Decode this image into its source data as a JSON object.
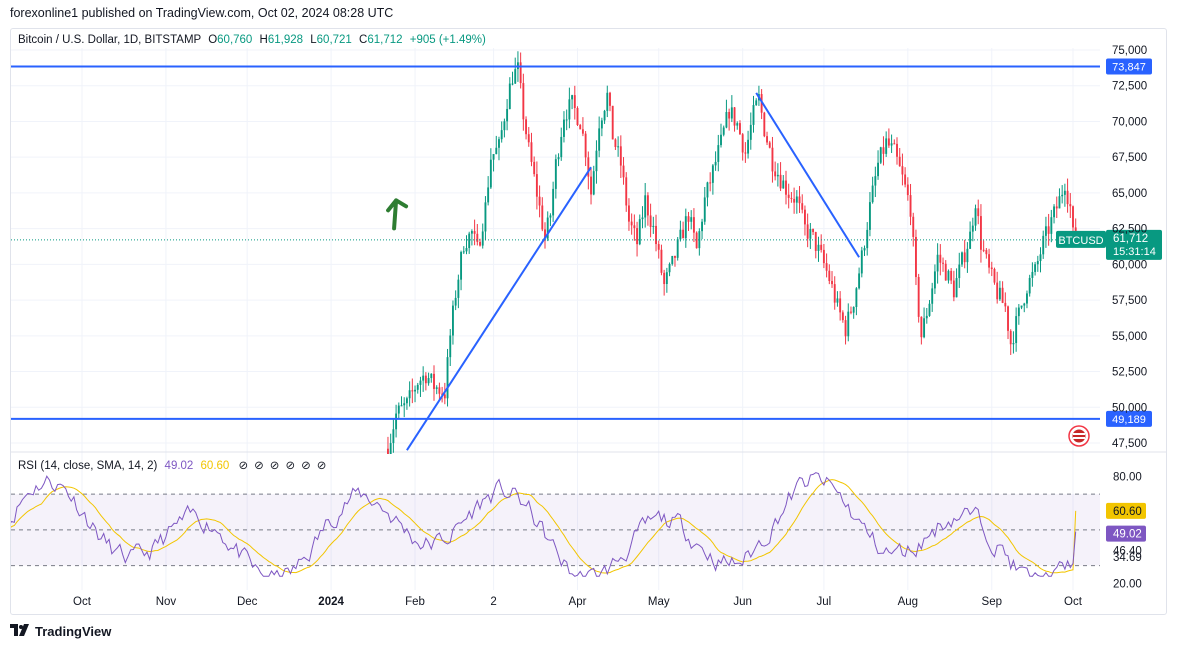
{
  "publisher_line": "forexonline1 published on TradingView.com, Oct 02, 2024 08:28 UTC",
  "legend": {
    "symbol": "Bitcoin / U.S. Dollar, 1D, BITSTAMP",
    "open_label": "O",
    "open": "60,760",
    "high_label": "H",
    "high": "61,928",
    "low_label": "L",
    "low": "60,721",
    "close_label": "C",
    "close": "61,712",
    "change": "+905 (+1.49%)"
  },
  "rsi_legend": {
    "label": "RSI (14, close, SMA, 14, 2)",
    "rsi": "49.02",
    "sma": "60.60",
    "icons": [
      "eye-off-icon",
      "eye-off-icon",
      "eye-off-icon",
      "eye-off-icon",
      "eye-off-icon",
      "eye-off-icon"
    ]
  },
  "footer": {
    "brand": "TradingView",
    "logo": "tradingview-logo"
  },
  "colors": {
    "up": "#089981",
    "down": "#f23645",
    "level_line": "#2962ff",
    "rsi": "#7e57c2",
    "rsi_sma": "#f2c500",
    "arrow": "#2e7d32"
  },
  "chart_data": {
    "type": "candlestick",
    "price_axis": {
      "ticks": [
        "75,000",
        "72,500",
        "70,000",
        "67,500",
        "65,000",
        "62,500",
        "60,000",
        "57,500",
        "55,000",
        "52,500",
        "50,000",
        "47,500"
      ],
      "tick_values": [
        75000,
        72500,
        70000,
        67500,
        65000,
        62500,
        60000,
        57500,
        55000,
        52500,
        50000,
        47500
      ],
      "range": [
        47000,
        76000
      ]
    },
    "time_axis": {
      "ticks": [
        "Oct",
        "Nov",
        "Dec",
        "2024",
        "Feb",
        "2",
        "Apr",
        "May",
        "Jun",
        "Jul",
        "Aug",
        "Sep",
        "Oct"
      ]
    },
    "levels": [
      {
        "value": 73847,
        "label": "73,847"
      },
      {
        "value": 49189,
        "label": "49,189"
      }
    ],
    "last_price": {
      "symbol": "BTCUSD",
      "value": 61712,
      "label": "61,712",
      "countdown": "15:31:14"
    },
    "trendlines": [
      {
        "from": {
          "date": "2024-01-29",
          "price": 47000
        },
        "to": {
          "date": "2024-04-06",
          "price": 66800
        }
      },
      {
        "from": {
          "date": "2024-06-06",
          "price": 72000
        },
        "to": {
          "date": "2024-07-14",
          "price": 60500
        }
      }
    ],
    "arrow": {
      "direction": "up",
      "date": "2024-01-25",
      "price": 63500
    },
    "price_path": [
      [
        "2024-01-22",
        47100
      ],
      [
        "2024-01-25",
        49500
      ],
      [
        "2024-01-29",
        50200
      ],
      [
        "2024-02-02",
        51800
      ],
      [
        "2024-02-05",
        52300
      ],
      [
        "2024-02-08",
        51500
      ],
      [
        "2024-02-12",
        51000
      ],
      [
        "2024-02-14",
        55000
      ],
      [
        "2024-02-16",
        58000
      ],
      [
        "2024-02-19",
        61500
      ],
      [
        "2024-02-22",
        62200
      ],
      [
        "2024-02-24",
        61000
      ],
      [
        "2024-02-27",
        64000
      ],
      [
        "2024-02-29",
        67500
      ],
      [
        "2024-03-03",
        68200
      ],
      [
        "2024-03-06",
        71500
      ],
      [
        "2024-03-08",
        73200
      ],
      [
        "2024-03-10",
        73600
      ],
      [
        "2024-03-12",
        70500
      ],
      [
        "2024-03-14",
        68000
      ],
      [
        "2024-03-17",
        65000
      ],
      [
        "2024-03-20",
        61800
      ],
      [
        "2024-03-22",
        63500
      ],
      [
        "2024-03-24",
        67000
      ],
      [
        "2024-03-27",
        70500
      ],
      [
        "2024-03-30",
        71200
      ],
      [
        "2024-04-02",
        70000
      ],
      [
        "2024-04-04",
        68000
      ],
      [
        "2024-04-06",
        65000
      ],
      [
        "2024-04-09",
        70000
      ],
      [
        "2024-04-12",
        71800
      ],
      [
        "2024-04-14",
        69000
      ],
      [
        "2024-04-17",
        67000
      ],
      [
        "2024-04-20",
        63000
      ],
      [
        "2024-04-23",
        61500
      ],
      [
        "2024-04-26",
        64500
      ],
      [
        "2024-04-29",
        62500
      ],
      [
        "2024-05-01",
        60500
      ],
      [
        "2024-05-03",
        58500
      ],
      [
        "2024-05-06",
        60000
      ],
      [
        "2024-05-09",
        61800
      ],
      [
        "2024-05-12",
        63500
      ],
      [
        "2024-05-15",
        61000
      ],
      [
        "2024-05-18",
        64500
      ],
      [
        "2024-05-21",
        66500
      ],
      [
        "2024-05-24",
        68500
      ],
      [
        "2024-05-27",
        70800
      ],
      [
        "2024-05-30",
        69800
      ],
      [
        "2024-06-02",
        67800
      ],
      [
        "2024-06-05",
        70500
      ],
      [
        "2024-06-07",
        71600
      ],
      [
        "2024-06-09",
        69500
      ],
      [
        "2024-06-12",
        67200
      ],
      [
        "2024-06-15",
        66000
      ],
      [
        "2024-06-18",
        65000
      ],
      [
        "2024-06-21",
        64500
      ],
      [
        "2024-06-24",
        62500
      ],
      [
        "2024-06-27",
        61800
      ],
      [
        "2024-06-30",
        60500
      ],
      [
        "2024-07-03",
        59000
      ],
      [
        "2024-07-06",
        57000
      ],
      [
        "2024-07-09",
        55500
      ],
      [
        "2024-07-12",
        57500
      ],
      [
        "2024-07-15",
        60500
      ],
      [
        "2024-07-18",
        64000
      ],
      [
        "2024-07-21",
        67000
      ],
      [
        "2024-07-24",
        68500
      ],
      [
        "2024-07-27",
        67800
      ],
      [
        "2024-07-30",
        66000
      ],
      [
        "2024-08-02",
        64000
      ],
      [
        "2024-08-04",
        58500
      ],
      [
        "2024-08-06",
        55000
      ],
      [
        "2024-08-09",
        57500
      ],
      [
        "2024-08-12",
        60500
      ],
      [
        "2024-08-15",
        59500
      ],
      [
        "2024-08-18",
        58200
      ],
      [
        "2024-08-21",
        60200
      ],
      [
        "2024-08-24",
        62000
      ],
      [
        "2024-08-26",
        64500
      ],
      [
        "2024-08-28",
        61500
      ],
      [
        "2024-08-31",
        59500
      ],
      [
        "2024-09-03",
        58000
      ],
      [
        "2024-09-06",
        57000
      ],
      [
        "2024-09-08",
        54500
      ],
      [
        "2024-09-11",
        56500
      ],
      [
        "2024-09-14",
        58500
      ],
      [
        "2024-09-17",
        59500
      ],
      [
        "2024-09-20",
        61500
      ],
      [
        "2024-09-23",
        63000
      ],
      [
        "2024-09-26",
        64500
      ],
      [
        "2024-09-28",
        65800
      ],
      [
        "2024-09-30",
        64000
      ],
      [
        "2024-10-01",
        62000
      ],
      [
        "2024-10-02",
        61712
      ]
    ],
    "rsi": {
      "ticks": [
        "80.00",
        "60.60",
        "49.02",
        "46.40",
        "34.69",
        "20.00"
      ],
      "upper_band": 70,
      "lower_band": 30,
      "rsi_value": 49.02,
      "sma_value": 60.6
    }
  }
}
